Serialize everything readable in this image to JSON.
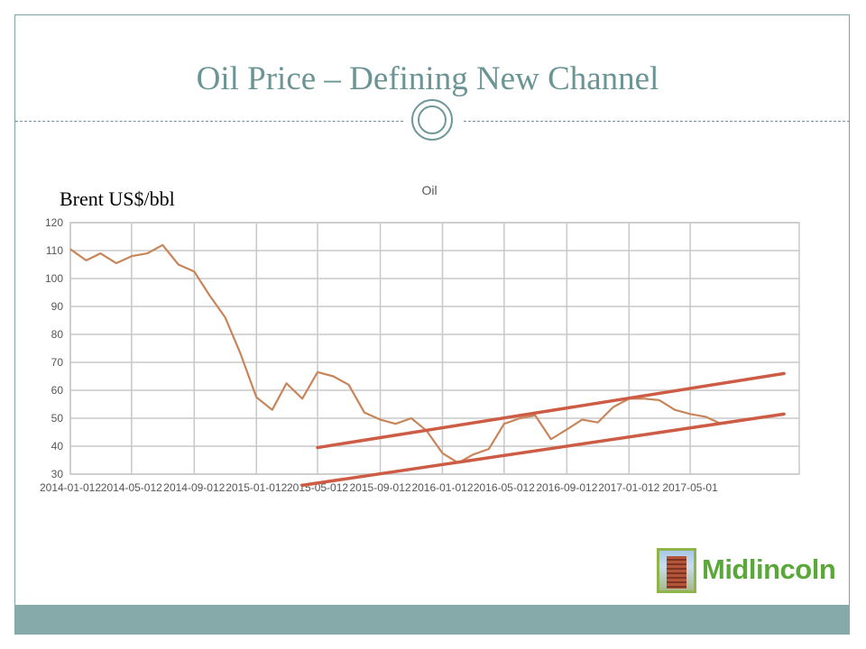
{
  "slide": {
    "title": "Oil Price – Defining New Channel",
    "unit_label": "Brent US$/bbl",
    "logo_text": "Midlincoln"
  },
  "chart_data": {
    "type": "line",
    "title": "Oil",
    "xlabel": "",
    "ylabel": "",
    "ylim": [
      30,
      120
    ],
    "yticks": [
      30,
      40,
      50,
      60,
      70,
      80,
      90,
      100,
      110,
      120
    ],
    "xlim": [
      "2014-01-01",
      "2017-12-01"
    ],
    "xticks": [
      {
        "date": "2014-01-01",
        "label": "2014-01-012"
      },
      {
        "date": "2014-05-01",
        "label": "2014-05-012"
      },
      {
        "date": "2014-09-01",
        "label": "2014-09-012"
      },
      {
        "date": "2015-01-01",
        "label": "2015-01-012"
      },
      {
        "date": "2015-05-01",
        "label": "2015-05-012"
      },
      {
        "date": "2015-09-01",
        "label": "2015-09-012"
      },
      {
        "date": "2016-01-01",
        "label": "2016-01-012"
      },
      {
        "date": "2016-05-01",
        "label": "2016-05-012"
      },
      {
        "date": "2016-09-01",
        "label": "2016-09-012"
      },
      {
        "date": "2017-01-01",
        "label": "2017-01-012"
      },
      {
        "date": "2017-05-01",
        "label": "2017-05-01"
      }
    ],
    "grid": true,
    "legend": "none",
    "colors": {
      "series": "#c8855a",
      "channel": "#cd5c45",
      "grid": "#c8c8c8"
    },
    "series": [
      {
        "x": [
          "2014-01-01",
          "2014-02-01",
          "2014-03-01",
          "2014-04-01",
          "2014-05-01",
          "2014-06-01",
          "2014-07-01",
          "2014-08-01",
          "2014-09-01",
          "2014-10-01",
          "2014-11-01",
          "2014-12-01",
          "2015-01-01",
          "2015-02-01",
          "2015-03-01",
          "2015-04-01",
          "2015-05-01",
          "2015-06-01",
          "2015-07-01",
          "2015-08-01",
          "2015-09-01",
          "2015-10-01",
          "2015-11-01",
          "2015-12-01",
          "2016-01-01",
          "2016-02-01",
          "2016-03-01",
          "2016-04-01",
          "2016-05-01",
          "2016-06-01",
          "2016-07-01",
          "2016-08-01",
          "2016-09-01",
          "2016-10-01",
          "2016-11-01",
          "2016-12-01",
          "2017-01-01",
          "2017-02-01",
          "2017-03-01",
          "2017-04-01",
          "2017-05-01",
          "2017-06-01",
          "2017-07-01"
        ],
        "values": [
          110.5,
          106.5,
          109,
          105.5,
          108,
          109,
          112,
          105,
          102.5,
          94,
          86,
          73,
          57.5,
          53,
          62.5,
          57,
          66.5,
          65,
          62,
          52,
          49.5,
          48,
          50,
          45.5,
          37.5,
          34,
          37,
          39,
          48,
          50,
          51,
          42.5,
          46,
          49.5,
          48.5,
          54,
          57,
          57,
          56.5,
          53,
          51.5,
          50.5,
          48
        ]
      }
    ],
    "channel_lines": [
      {
        "x": [
          "2015-05-01",
          "2017-11-01"
        ],
        "y": [
          39.5,
          66
        ]
      },
      {
        "x": [
          "2015-04-01",
          "2017-11-01"
        ],
        "y": [
          26,
          51.5
        ]
      }
    ]
  }
}
